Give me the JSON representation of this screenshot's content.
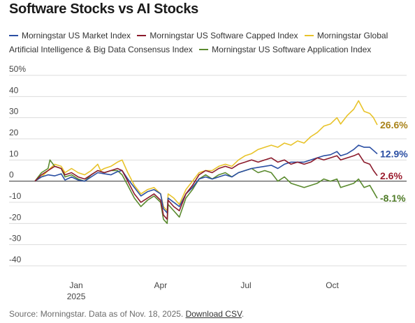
{
  "title": "Software Stocks vs AI Stocks",
  "source": {
    "text": "Source: Morningstar. Data as of Nov. 18, 2025.",
    "link_label": "Download CSV",
    "end": "."
  },
  "chart_data": {
    "type": "line",
    "title": "Software Stocks vs AI Stocks",
    "xlabel": "",
    "ylabel": "",
    "ylim": [
      -45,
      50
    ],
    "grid": "horizontal",
    "legend_position": "top",
    "y_ticks": [
      "50%",
      "40",
      "30",
      "20",
      "10",
      "0",
      "-10",
      "-20",
      "-30",
      "-40"
    ],
    "y_tick_values": [
      50,
      40,
      30,
      20,
      10,
      0,
      -10,
      -20,
      -30,
      -40
    ],
    "x_ticks": [
      {
        "label": "Jan",
        "sublabel": "2025",
        "date": "2025-01-01"
      },
      {
        "label": "Apr",
        "sublabel": "",
        "date": "2025-04-01"
      },
      {
        "label": "Jul",
        "sublabel": "",
        "date": "2025-07-01"
      },
      {
        "label": "Oct",
        "sublabel": "",
        "date": "2025-10-01"
      }
    ],
    "x_range": [
      "2024-11-18",
      "2025-11-18"
    ],
    "series": [
      {
        "name": "Morningstar US Market Index",
        "color": "#2b4fa3",
        "end_label": "12.9%",
        "label_color": "#2b4fa3",
        "points": [
          [
            "2024-11-18",
            0
          ],
          [
            "2024-11-25",
            2
          ],
          [
            "2024-12-02",
            3
          ],
          [
            "2024-12-09",
            2.5
          ],
          [
            "2024-12-16",
            3.5
          ],
          [
            "2024-12-20",
            0.5
          ],
          [
            "2024-12-27",
            2
          ],
          [
            "2025-01-03",
            0.5
          ],
          [
            "2025-01-10",
            0
          ],
          [
            "2025-01-17",
            2
          ],
          [
            "2025-01-24",
            4
          ],
          [
            "2025-01-31",
            3.5
          ],
          [
            "2025-02-07",
            3
          ],
          [
            "2025-02-14",
            4.5
          ],
          [
            "2025-02-19",
            5
          ],
          [
            "2025-02-25",
            1
          ],
          [
            "2025-03-04",
            -3
          ],
          [
            "2025-03-11",
            -7
          ],
          [
            "2025-03-18",
            -5
          ],
          [
            "2025-03-25",
            -4
          ],
          [
            "2025-04-01",
            -6
          ],
          [
            "2025-04-04",
            -13
          ],
          [
            "2025-04-08",
            -15
          ],
          [
            "2025-04-09",
            -8
          ],
          [
            "2025-04-15",
            -10
          ],
          [
            "2025-04-21",
            -12
          ],
          [
            "2025-04-28",
            -6
          ],
          [
            "2025-05-05",
            -3
          ],
          [
            "2025-05-12",
            1
          ],
          [
            "2025-05-19",
            2
          ],
          [
            "2025-05-26",
            1
          ],
          [
            "2025-06-02",
            2
          ],
          [
            "2025-06-09",
            3
          ],
          [
            "2025-06-16",
            2
          ],
          [
            "2025-06-23",
            4
          ],
          [
            "2025-06-30",
            5
          ],
          [
            "2025-07-07",
            6
          ],
          [
            "2025-07-14",
            6.5
          ],
          [
            "2025-07-21",
            7
          ],
          [
            "2025-07-28",
            7.5
          ],
          [
            "2025-08-04",
            6
          ],
          [
            "2025-08-11",
            8
          ],
          [
            "2025-08-18",
            9
          ],
          [
            "2025-08-25",
            9
          ],
          [
            "2025-09-01",
            9
          ],
          [
            "2025-09-08",
            10
          ],
          [
            "2025-09-15",
            11
          ],
          [
            "2025-09-22",
            12
          ],
          [
            "2025-09-29",
            12.5
          ],
          [
            "2025-10-06",
            14
          ],
          [
            "2025-10-10",
            12
          ],
          [
            "2025-10-17",
            13
          ],
          [
            "2025-10-24",
            15
          ],
          [
            "2025-10-29",
            17
          ],
          [
            "2025-11-04",
            16
          ],
          [
            "2025-11-10",
            16
          ],
          [
            "2025-11-14",
            14.5
          ],
          [
            "2025-11-18",
            12.9
          ]
        ]
      },
      {
        "name": "Morningstar US Software Capped Index",
        "color": "#8b1a2b",
        "end_label": "2.6%",
        "label_color": "#9b1c2e",
        "points": [
          [
            "2024-11-18",
            0
          ],
          [
            "2024-11-25",
            3
          ],
          [
            "2024-12-02",
            5
          ],
          [
            "2024-12-09",
            7
          ],
          [
            "2024-12-16",
            6
          ],
          [
            "2024-12-20",
            3
          ],
          [
            "2024-12-27",
            4
          ],
          [
            "2025-01-03",
            2
          ],
          [
            "2025-01-10",
            1
          ],
          [
            "2025-01-17",
            3
          ],
          [
            "2025-01-24",
            5
          ],
          [
            "2025-01-31",
            4
          ],
          [
            "2025-02-07",
            5
          ],
          [
            "2025-02-14",
            6
          ],
          [
            "2025-02-19",
            5
          ],
          [
            "2025-02-25",
            0
          ],
          [
            "2025-03-04",
            -6
          ],
          [
            "2025-03-11",
            -10
          ],
          [
            "2025-03-18",
            -8
          ],
          [
            "2025-03-25",
            -6
          ],
          [
            "2025-04-01",
            -9
          ],
          [
            "2025-04-04",
            -16
          ],
          [
            "2025-04-08",
            -18
          ],
          [
            "2025-04-09",
            -9
          ],
          [
            "2025-04-15",
            -12
          ],
          [
            "2025-04-21",
            -14
          ],
          [
            "2025-04-28",
            -6
          ],
          [
            "2025-05-05",
            -2
          ],
          [
            "2025-05-12",
            3
          ],
          [
            "2025-05-19",
            5
          ],
          [
            "2025-05-26",
            4
          ],
          [
            "2025-06-02",
            6
          ],
          [
            "2025-06-09",
            7
          ],
          [
            "2025-06-16",
            6
          ],
          [
            "2025-06-23",
            8
          ],
          [
            "2025-06-30",
            9
          ],
          [
            "2025-07-07",
            10
          ],
          [
            "2025-07-14",
            9
          ],
          [
            "2025-07-21",
            10
          ],
          [
            "2025-07-28",
            11
          ],
          [
            "2025-08-04",
            9
          ],
          [
            "2025-08-11",
            10
          ],
          [
            "2025-08-18",
            8
          ],
          [
            "2025-08-25",
            9
          ],
          [
            "2025-09-01",
            8
          ],
          [
            "2025-09-08",
            9
          ],
          [
            "2025-09-15",
            11
          ],
          [
            "2025-09-22",
            10
          ],
          [
            "2025-09-29",
            11
          ],
          [
            "2025-10-06",
            12
          ],
          [
            "2025-10-10",
            10
          ],
          [
            "2025-10-17",
            11
          ],
          [
            "2025-10-24",
            12
          ],
          [
            "2025-10-29",
            13
          ],
          [
            "2025-11-04",
            9
          ],
          [
            "2025-11-10",
            8
          ],
          [
            "2025-11-14",
            5
          ],
          [
            "2025-11-18",
            2.6
          ]
        ]
      },
      {
        "name": "Morningstar Global Artificial Intelligence & Big Data Consensus Index",
        "color": "#e8c32a",
        "end_label": "26.6%",
        "label_color": "#a9831b",
        "points": [
          [
            "2024-11-18",
            0
          ],
          [
            "2024-11-25",
            2
          ],
          [
            "2024-12-02",
            5
          ],
          [
            "2024-12-09",
            8
          ],
          [
            "2024-12-16",
            7
          ],
          [
            "2024-12-20",
            4
          ],
          [
            "2024-12-27",
            6
          ],
          [
            "2025-01-03",
            4
          ],
          [
            "2025-01-10",
            3
          ],
          [
            "2025-01-17",
            5
          ],
          [
            "2025-01-24",
            8
          ],
          [
            "2025-01-27",
            5
          ],
          [
            "2025-01-31",
            6
          ],
          [
            "2025-02-07",
            7
          ],
          [
            "2025-02-14",
            9
          ],
          [
            "2025-02-19",
            10
          ],
          [
            "2025-02-25",
            4
          ],
          [
            "2025-03-04",
            -2
          ],
          [
            "2025-03-11",
            -6
          ],
          [
            "2025-03-18",
            -4
          ],
          [
            "2025-03-25",
            -3
          ],
          [
            "2025-04-01",
            -6
          ],
          [
            "2025-04-04",
            -12
          ],
          [
            "2025-04-08",
            -14
          ],
          [
            "2025-04-09",
            -6
          ],
          [
            "2025-04-15",
            -8
          ],
          [
            "2025-04-21",
            -11
          ],
          [
            "2025-04-28",
            -4
          ],
          [
            "2025-05-05",
            0
          ],
          [
            "2025-05-12",
            4
          ],
          [
            "2025-05-19",
            5
          ],
          [
            "2025-05-26",
            5
          ],
          [
            "2025-06-02",
            7
          ],
          [
            "2025-06-09",
            8
          ],
          [
            "2025-06-16",
            7
          ],
          [
            "2025-06-23",
            10
          ],
          [
            "2025-06-30",
            12
          ],
          [
            "2025-07-07",
            13
          ],
          [
            "2025-07-14",
            15
          ],
          [
            "2025-07-21",
            16
          ],
          [
            "2025-07-28",
            17
          ],
          [
            "2025-08-04",
            16
          ],
          [
            "2025-08-11",
            18
          ],
          [
            "2025-08-18",
            17
          ],
          [
            "2025-08-25",
            19
          ],
          [
            "2025-09-01",
            18
          ],
          [
            "2025-09-08",
            21
          ],
          [
            "2025-09-15",
            23
          ],
          [
            "2025-09-22",
            26
          ],
          [
            "2025-09-29",
            27
          ],
          [
            "2025-10-06",
            30
          ],
          [
            "2025-10-10",
            27
          ],
          [
            "2025-10-17",
            31
          ],
          [
            "2025-10-24",
            34
          ],
          [
            "2025-10-29",
            38
          ],
          [
            "2025-11-04",
            33
          ],
          [
            "2025-11-10",
            32
          ],
          [
            "2025-11-14",
            30
          ],
          [
            "2025-11-18",
            26.6
          ]
        ]
      },
      {
        "name": "Morningstar US Software Application Index",
        "color": "#5a8a2e",
        "end_label": "-8.1%",
        "label_color": "#4e7a26",
        "points": [
          [
            "2024-11-18",
            0
          ],
          [
            "2024-11-25",
            4
          ],
          [
            "2024-12-02",
            6
          ],
          [
            "2024-12-04",
            10
          ],
          [
            "2024-12-09",
            7
          ],
          [
            "2024-12-16",
            6
          ],
          [
            "2024-12-20",
            2
          ],
          [
            "2024-12-27",
            3
          ],
          [
            "2025-01-03",
            1
          ],
          [
            "2025-01-10",
            0
          ],
          [
            "2025-01-17",
            3
          ],
          [
            "2025-01-24",
            5
          ],
          [
            "2025-01-31",
            4
          ],
          [
            "2025-02-07",
            5
          ],
          [
            "2025-02-14",
            5
          ],
          [
            "2025-02-19",
            3
          ],
          [
            "2025-02-25",
            -2
          ],
          [
            "2025-03-04",
            -8
          ],
          [
            "2025-03-11",
            -12
          ],
          [
            "2025-03-18",
            -9
          ],
          [
            "2025-03-25",
            -7
          ],
          [
            "2025-04-01",
            -10
          ],
          [
            "2025-04-04",
            -18
          ],
          [
            "2025-04-08",
            -20
          ],
          [
            "2025-04-09",
            -11
          ],
          [
            "2025-04-15",
            -14
          ],
          [
            "2025-04-21",
            -17
          ],
          [
            "2025-04-28",
            -8
          ],
          [
            "2025-05-05",
            -4
          ],
          [
            "2025-05-12",
            1
          ],
          [
            "2025-05-19",
            3
          ],
          [
            "2025-05-26",
            1
          ],
          [
            "2025-06-02",
            3
          ],
          [
            "2025-06-09",
            4
          ],
          [
            "2025-06-16",
            2
          ],
          [
            "2025-06-23",
            4
          ],
          [
            "2025-06-30",
            5
          ],
          [
            "2025-07-07",
            6
          ],
          [
            "2025-07-14",
            4
          ],
          [
            "2025-07-21",
            5
          ],
          [
            "2025-07-28",
            4
          ],
          [
            "2025-08-04",
            0
          ],
          [
            "2025-08-11",
            2
          ],
          [
            "2025-08-18",
            -1
          ],
          [
            "2025-08-25",
            -2
          ],
          [
            "2025-09-01",
            -3
          ],
          [
            "2025-09-08",
            -2
          ],
          [
            "2025-09-15",
            -1
          ],
          [
            "2025-09-22",
            1
          ],
          [
            "2025-09-29",
            0
          ],
          [
            "2025-10-06",
            1
          ],
          [
            "2025-10-10",
            -3
          ],
          [
            "2025-10-17",
            -2
          ],
          [
            "2025-10-24",
            -1
          ],
          [
            "2025-10-29",
            1
          ],
          [
            "2025-11-04",
            -3
          ],
          [
            "2025-11-10",
            -2
          ],
          [
            "2025-11-14",
            -5
          ],
          [
            "2025-11-18",
            -8.1
          ]
        ]
      }
    ]
  }
}
